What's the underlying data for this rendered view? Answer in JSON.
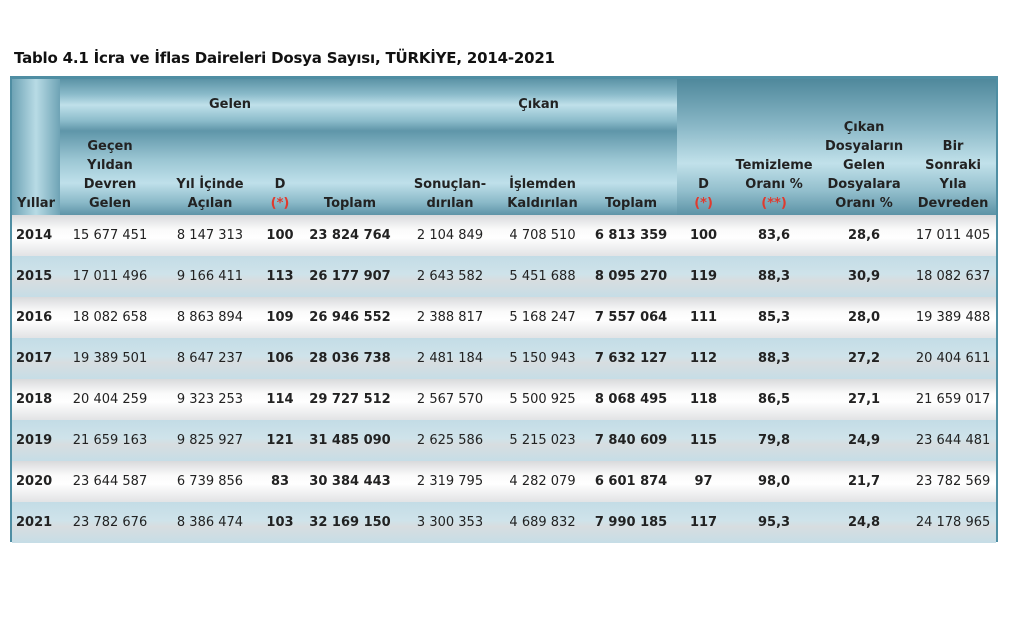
{
  "title": "Tablo 4.1 İcra ve İflas Daireleri Dosya Sayısı, TÜRKİYE, 2014-2021",
  "header": {
    "gelen_group": "Gelen",
    "cikan_group": "Çıkan",
    "yillar": "Yıllar",
    "gecen_yildan": "Geçen\nYıldan\nDevren\nGelen",
    "yil_icinde": "Yıl İçinde\nAçılan",
    "d1": "D",
    "d1_note": "(*)",
    "toplam1": "Toplam",
    "sonuclandirilan": "Sonuçlan-\ndırılan",
    "islemden": "İşlemden\nKaldırılan",
    "toplam2": "Toplam",
    "d2": "D",
    "d2_note": "(*)",
    "temizleme": "Temizleme\nOranı %",
    "temizleme_note": "(**)",
    "cikan_orani": "Çıkan\nDosyaların\nGelen\nDosyalara\nOranı %",
    "bir_sonraki": "Bir\nSonraki\nYıla\nDevreden"
  },
  "rows": [
    [
      "2014",
      "15 677 451",
      "8 147 313",
      "100",
      "23 824 764",
      "2 104 849",
      "4 708 510",
      "6 813 359",
      "100",
      "83,6",
      "28,6",
      "17 011 405"
    ],
    [
      "2015",
      "17 011 496",
      "9 166 411",
      "113",
      "26 177 907",
      "2 643 582",
      "5 451 688",
      "8 095 270",
      "119",
      "88,3",
      "30,9",
      "18 082 637"
    ],
    [
      "2016",
      "18 082 658",
      "8 863 894",
      "109",
      "26 946 552",
      "2 388 817",
      "5 168 247",
      "7 557 064",
      "111",
      "85,3",
      "28,0",
      "19 389 488"
    ],
    [
      "2017",
      "19 389 501",
      "8 647 237",
      "106",
      "28 036 738",
      "2 481 184",
      "5 150 943",
      "7 632 127",
      "112",
      "88,3",
      "27,2",
      "20 404 611"
    ],
    [
      "2018",
      "20 404 259",
      "9 323 253",
      "114",
      "29 727 512",
      "2 567 570",
      "5 500 925",
      "8 068 495",
      "118",
      "86,5",
      "27,1",
      "21 659 017"
    ],
    [
      "2019",
      "21 659 163",
      "9 825 927",
      "121",
      "31 485 090",
      "2 625 586",
      "5 215 023",
      "7 840 609",
      "115",
      "79,8",
      "24,9",
      "23 644 481"
    ],
    [
      "2020",
      "23 644 587",
      "6 739 856",
      "83",
      "30 384 443",
      "2 319 795",
      "4 282 079",
      "6 601 874",
      "97",
      "98,0",
      "21,7",
      "23 782 569"
    ],
    [
      "2021",
      "23 782 676",
      "8 386 474",
      "103",
      "32 169 150",
      "3 300 353",
      "4 689 832",
      "7 990 185",
      "117",
      "95,3",
      "24,8",
      "24 178 965"
    ]
  ],
  "colors": {
    "border": "#4f8ea3",
    "note_red": "#e03a2e",
    "row_blue": "#c9e0e8"
  }
}
